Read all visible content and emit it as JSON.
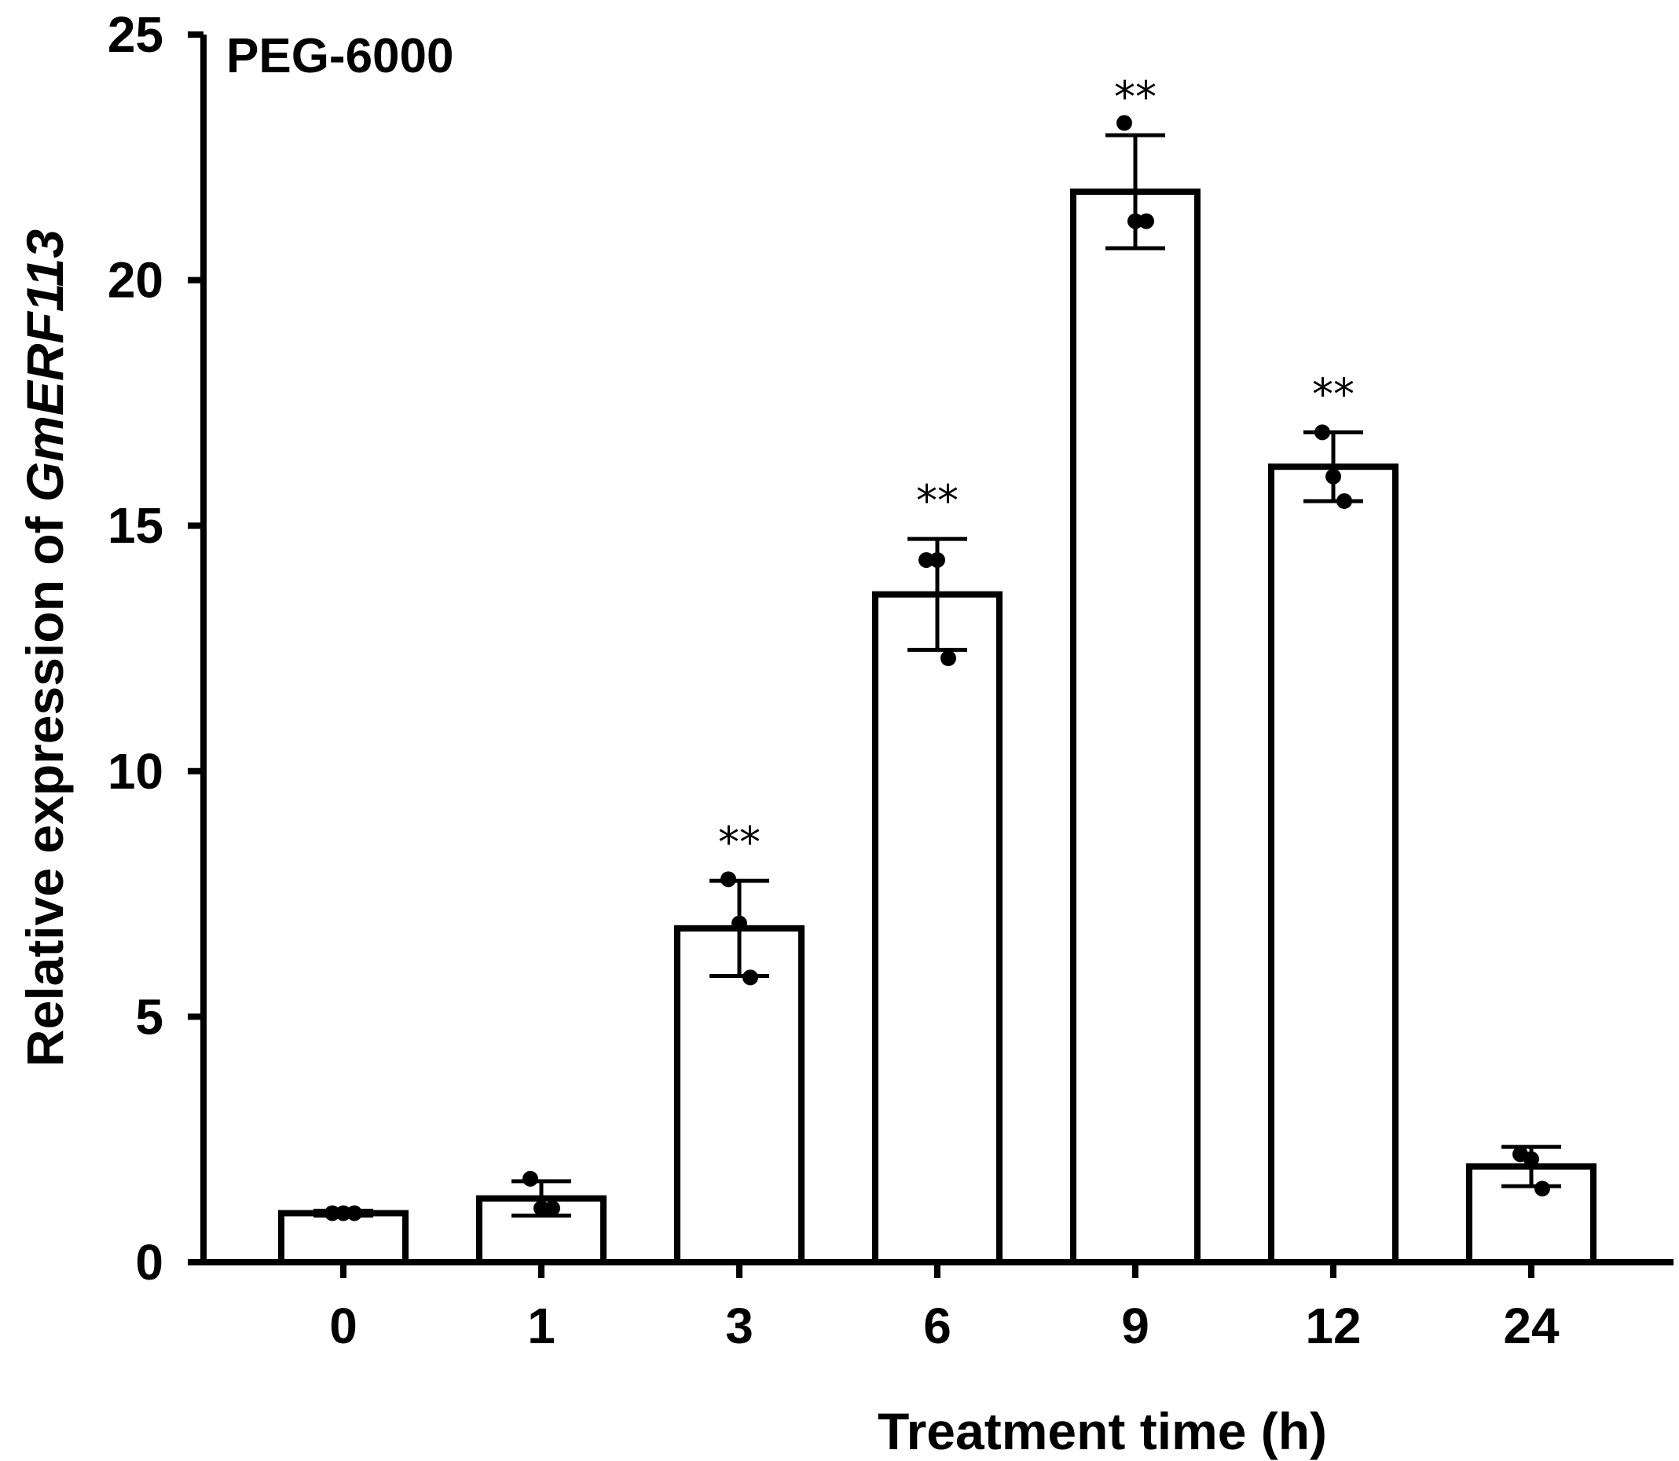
{
  "chart_data": {
    "type": "bar",
    "panel_label": "PEG-6000",
    "xlabel": "Treatment time (h)",
    "ylabel_prefix": "Relative expression of ",
    "ylabel_gene": "GmERF113",
    "ylim": [
      0,
      25
    ],
    "yticks": [
      "0",
      "5",
      "10",
      "15",
      "20",
      "25"
    ],
    "categories": [
      "0",
      "1",
      "3",
      "6",
      "9",
      "12",
      "24"
    ],
    "values": [
      1.0,
      1.3,
      6.8,
      13.6,
      21.8,
      16.2,
      1.95
    ],
    "error": [
      0.05,
      0.35,
      0.97,
      1.13,
      1.15,
      0.7,
      0.4
    ],
    "points": [
      [
        1.0,
        1.0,
        1.0
      ],
      [
        1.7,
        1.1,
        1.1
      ],
      [
        7.8,
        6.9,
        5.8
      ],
      [
        14.3,
        14.3,
        12.3
      ],
      [
        23.2,
        21.2,
        21.2
      ],
      [
        16.9,
        16.0,
        15.5
      ],
      [
        2.2,
        2.1,
        1.5
      ]
    ],
    "significance": [
      "",
      "",
      "**",
      "**",
      "**",
      "**",
      ""
    ],
    "colors": {
      "bar_fill": "#ffffff",
      "stroke": "#000000",
      "points": "#000000"
    }
  }
}
